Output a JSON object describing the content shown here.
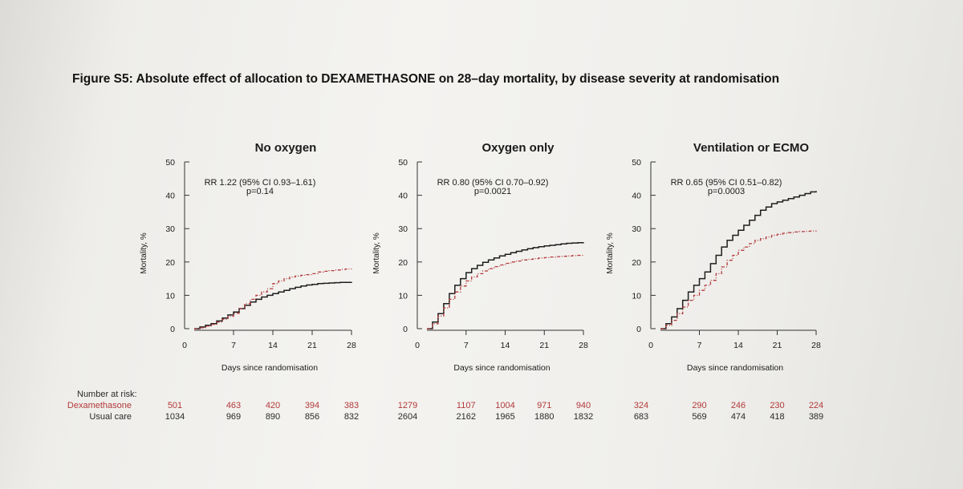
{
  "figure_title": "Figure S5: Absolute effect of allocation to DEXAMETHASONE on 28–day mortality, by disease severity at randomisation",
  "colors": {
    "dexamethasone": "#b23a3a",
    "usual_care": "#1e1e1e"
  },
  "risk_table": {
    "header": "Number at risk:",
    "dex_label": "Dexamethasone",
    "uc_label": "Usual care"
  },
  "chart_data": [
    {
      "type": "line",
      "title": "No oxygen",
      "xlabel": "Days since randomisation",
      "ylabel": "Mortality, %",
      "xlim": [
        0,
        28
      ],
      "ylim": [
        0,
        50
      ],
      "xticks": [
        0,
        7,
        14,
        21,
        28
      ],
      "yticks": [
        0,
        10,
        20,
        30,
        40,
        50
      ],
      "annotation": [
        "RR 1.22 (95% CI 0.93–1.61)",
        "p=0.14"
      ],
      "series": [
        {
          "name": "Usual care",
          "style": "solid",
          "x": [
            0,
            1,
            2,
            3,
            4,
            5,
            6,
            7,
            8,
            9,
            10,
            11,
            12,
            13,
            14,
            15,
            16,
            17,
            18,
            19,
            20,
            21,
            22,
            23,
            24,
            25,
            26,
            27,
            28
          ],
          "y": [
            0,
            0.5,
            1,
            1.5,
            2.3,
            3.2,
            4.1,
            5,
            6,
            7,
            8,
            8.8,
            9.5,
            10,
            10.5,
            11,
            11.5,
            12,
            12.4,
            12.8,
            13.1,
            13.3,
            13.5,
            13.6,
            13.7,
            13.8,
            13.9,
            13.9,
            14
          ]
        },
        {
          "name": "Dexamethasone",
          "style": "dashed",
          "x": [
            0,
            1,
            2,
            3,
            4,
            5,
            6,
            7,
            8,
            9,
            10,
            11,
            12,
            13,
            14,
            15,
            16,
            17,
            18,
            19,
            20,
            21,
            22,
            23,
            24,
            25,
            26,
            27,
            28
          ],
          "y": [
            0,
            0.3,
            0.8,
            1.3,
            2,
            2.8,
            3.7,
            4.6,
            6,
            7.5,
            8.8,
            10,
            11,
            12,
            13.5,
            14.3,
            15,
            15.5,
            15.8,
            16,
            16.2,
            16.5,
            17,
            17.2,
            17.4,
            17.6,
            17.8,
            17.9,
            18
          ]
        }
      ],
      "risk": {
        "days": [
          0,
          7,
          14,
          21,
          28
        ],
        "dex": [
          501,
          463,
          420,
          394,
          383
        ],
        "uc": [
          1034,
          969,
          890,
          856,
          832
        ]
      }
    },
    {
      "type": "line",
      "title": "Oxygen only",
      "xlabel": "Days since randomisation",
      "ylabel": "Mortality, %",
      "xlim": [
        0,
        28
      ],
      "ylim": [
        0,
        50
      ],
      "xticks": [
        0,
        7,
        14,
        21,
        28
      ],
      "yticks": [
        0,
        10,
        20,
        30,
        40,
        50
      ],
      "annotation": [
        "RR 0.80 (95% CI 0.70–0.92)",
        "p=0.0021"
      ],
      "series": [
        {
          "name": "Usual care",
          "style": "solid",
          "x": [
            0,
            1,
            2,
            3,
            4,
            5,
            6,
            7,
            8,
            9,
            10,
            11,
            12,
            13,
            14,
            15,
            16,
            17,
            18,
            19,
            20,
            21,
            22,
            23,
            24,
            25,
            26,
            27,
            28
          ],
          "y": [
            0,
            2,
            4.5,
            7.5,
            10.5,
            13,
            15,
            16.8,
            18,
            19,
            19.9,
            20.6,
            21.2,
            21.8,
            22.3,
            22.8,
            23.2,
            23.6,
            24,
            24.3,
            24.6,
            24.8,
            25,
            25.2,
            25.4,
            25.6,
            25.7,
            25.8,
            25.9
          ]
        },
        {
          "name": "Dexamethasone",
          "style": "dashed",
          "x": [
            0,
            1,
            2,
            3,
            4,
            5,
            6,
            7,
            8,
            9,
            10,
            11,
            12,
            13,
            14,
            15,
            16,
            17,
            18,
            19,
            20,
            21,
            22,
            23,
            24,
            25,
            26,
            27,
            28
          ],
          "y": [
            0,
            1.5,
            3.8,
            6.2,
            8.8,
            11,
            12.8,
            14.3,
            15.5,
            16.5,
            17.3,
            18,
            18.6,
            19.1,
            19.6,
            20,
            20.3,
            20.6,
            20.8,
            21,
            21.2,
            21.3,
            21.5,
            21.6,
            21.7,
            21.8,
            21.9,
            22,
            22
          ]
        }
      ],
      "risk": {
        "days": [
          0,
          7,
          14,
          21,
          28
        ],
        "dex": [
          1279,
          1107,
          1004,
          971,
          940
        ],
        "uc": [
          2604,
          2162,
          1965,
          1880,
          1832
        ]
      }
    },
    {
      "type": "line",
      "title": "Ventilation or ECMO",
      "xlabel": "Days since randomisation",
      "ylabel": "Mortality, %",
      "xlim": [
        0,
        28
      ],
      "ylim": [
        0,
        50
      ],
      "xticks": [
        0,
        7,
        14,
        21,
        28
      ],
      "yticks": [
        0,
        10,
        20,
        30,
        40,
        50
      ],
      "annotation": [
        "RR 0.65 (95% CI 0.51–0.82)",
        "p=0.0003"
      ],
      "series": [
        {
          "name": "Usual care",
          "style": "solid",
          "x": [
            0,
            1,
            2,
            3,
            4,
            5,
            6,
            7,
            8,
            9,
            10,
            11,
            12,
            13,
            14,
            15,
            16,
            17,
            18,
            19,
            20,
            21,
            22,
            23,
            24,
            25,
            26,
            27,
            28
          ],
          "y": [
            0,
            1.5,
            3.5,
            6,
            8.5,
            11,
            13,
            15,
            17,
            19.5,
            22,
            24.5,
            26.5,
            28,
            29.5,
            31,
            32.5,
            34,
            35.5,
            36.5,
            37.5,
            38,
            38.5,
            39,
            39.5,
            40,
            40.5,
            41,
            41.3
          ]
        },
        {
          "name": "Dexamethasone",
          "style": "dashed",
          "x": [
            0,
            1,
            2,
            3,
            4,
            5,
            6,
            7,
            8,
            9,
            10,
            11,
            12,
            13,
            14,
            15,
            16,
            17,
            18,
            19,
            20,
            21,
            22,
            23,
            24,
            25,
            26,
            27,
            28
          ],
          "y": [
            0,
            1,
            2.5,
            4.5,
            6.5,
            8.5,
            10,
            11.5,
            13,
            14.5,
            16.5,
            18.5,
            20.5,
            22,
            23.5,
            24.5,
            25.5,
            26.5,
            27,
            27.5,
            28,
            28.3,
            28.6,
            28.8,
            29,
            29.1,
            29.2,
            29.3,
            29.4
          ]
        }
      ],
      "risk": {
        "days": [
          0,
          7,
          14,
          21,
          28
        ],
        "dex": [
          324,
          290,
          246,
          230,
          224
        ],
        "uc": [
          683,
          569,
          474,
          418,
          389
        ]
      }
    }
  ]
}
